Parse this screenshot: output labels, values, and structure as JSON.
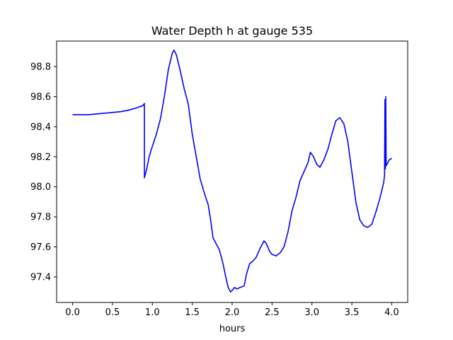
{
  "chart_data": {
    "type": "line",
    "title": "Water Depth h at gauge 535",
    "xlabel": "hours",
    "ylabel": "",
    "xlim": [
      -0.2,
      4.2
    ],
    "ylim": [
      97.23,
      98.97
    ],
    "x_ticks": [
      0.0,
      0.5,
      1.0,
      1.5,
      2.0,
      2.5,
      3.0,
      3.5,
      4.0
    ],
    "x_tick_labels": [
      "0.0",
      "0.5",
      "1.0",
      "1.5",
      "2.0",
      "2.5",
      "3.0",
      "3.5",
      "4.0"
    ],
    "y_ticks": [
      97.4,
      97.6,
      97.8,
      98.0,
      98.2,
      98.4,
      98.6,
      98.8
    ],
    "y_tick_labels": [
      "97.4",
      "97.6",
      "97.8",
      "98.0",
      "98.2",
      "98.4",
      "98.6",
      "98.8"
    ],
    "grid": false,
    "legend": "none",
    "series": [
      {
        "color": "#0000ff",
        "points": [
          [
            0.0,
            98.48
          ],
          [
            0.2,
            98.48
          ],
          [
            0.4,
            98.49
          ],
          [
            0.6,
            98.5
          ],
          [
            0.7,
            98.51
          ],
          [
            0.8,
            98.525
          ],
          [
            0.88,
            98.54
          ],
          [
            0.9,
            98.555
          ],
          [
            0.9,
            98.06
          ],
          [
            0.93,
            98.12
          ],
          [
            0.96,
            98.2
          ],
          [
            1.0,
            98.27
          ],
          [
            1.05,
            98.35
          ],
          [
            1.1,
            98.45
          ],
          [
            1.15,
            98.6
          ],
          [
            1.2,
            98.78
          ],
          [
            1.25,
            98.89
          ],
          [
            1.27,
            98.91
          ],
          [
            1.3,
            98.88
          ],
          [
            1.35,
            98.77
          ],
          [
            1.4,
            98.65
          ],
          [
            1.45,
            98.55
          ],
          [
            1.5,
            98.35
          ],
          [
            1.55,
            98.2
          ],
          [
            1.6,
            98.05
          ],
          [
            1.65,
            97.96
          ],
          [
            1.7,
            97.88
          ],
          [
            1.73,
            97.78
          ],
          [
            1.76,
            97.66
          ],
          [
            1.8,
            97.62
          ],
          [
            1.84,
            97.58
          ],
          [
            1.88,
            97.5
          ],
          [
            1.92,
            97.4
          ],
          [
            1.95,
            97.33
          ],
          [
            1.98,
            97.3
          ],
          [
            2.0,
            97.31
          ],
          [
            2.03,
            97.33
          ],
          [
            2.06,
            97.32
          ],
          [
            2.1,
            97.33
          ],
          [
            2.15,
            97.34
          ],
          [
            2.18,
            97.42
          ],
          [
            2.22,
            97.49
          ],
          [
            2.25,
            97.5
          ],
          [
            2.3,
            97.53
          ],
          [
            2.35,
            97.59
          ],
          [
            2.4,
            97.64
          ],
          [
            2.43,
            97.62
          ],
          [
            2.47,
            97.57
          ],
          [
            2.5,
            97.55
          ],
          [
            2.55,
            97.54
          ],
          [
            2.6,
            97.56
          ],
          [
            2.65,
            97.6
          ],
          [
            2.7,
            97.7
          ],
          [
            2.75,
            97.84
          ],
          [
            2.8,
            97.93
          ],
          [
            2.85,
            98.04
          ],
          [
            2.9,
            98.1
          ],
          [
            2.95,
            98.16
          ],
          [
            2.98,
            98.23
          ],
          [
            3.02,
            98.2
          ],
          [
            3.06,
            98.15
          ],
          [
            3.1,
            98.13
          ],
          [
            3.15,
            98.18
          ],
          [
            3.2,
            98.25
          ],
          [
            3.25,
            98.35
          ],
          [
            3.3,
            98.44
          ],
          [
            3.35,
            98.46
          ],
          [
            3.4,
            98.42
          ],
          [
            3.45,
            98.3
          ],
          [
            3.5,
            98.1
          ],
          [
            3.55,
            97.9
          ],
          [
            3.6,
            97.78
          ],
          [
            3.65,
            97.74
          ],
          [
            3.7,
            97.73
          ],
          [
            3.75,
            97.75
          ],
          [
            3.8,
            97.83
          ],
          [
            3.85,
            97.92
          ],
          [
            3.9,
            98.03
          ],
          [
            3.91,
            98.08
          ],
          [
            3.915,
            98.58
          ],
          [
            3.92,
            98.12
          ],
          [
            3.925,
            98.6
          ],
          [
            3.93,
            98.14
          ],
          [
            3.95,
            98.16
          ],
          [
            3.97,
            98.18
          ],
          [
            4.0,
            98.19
          ]
        ]
      }
    ]
  }
}
